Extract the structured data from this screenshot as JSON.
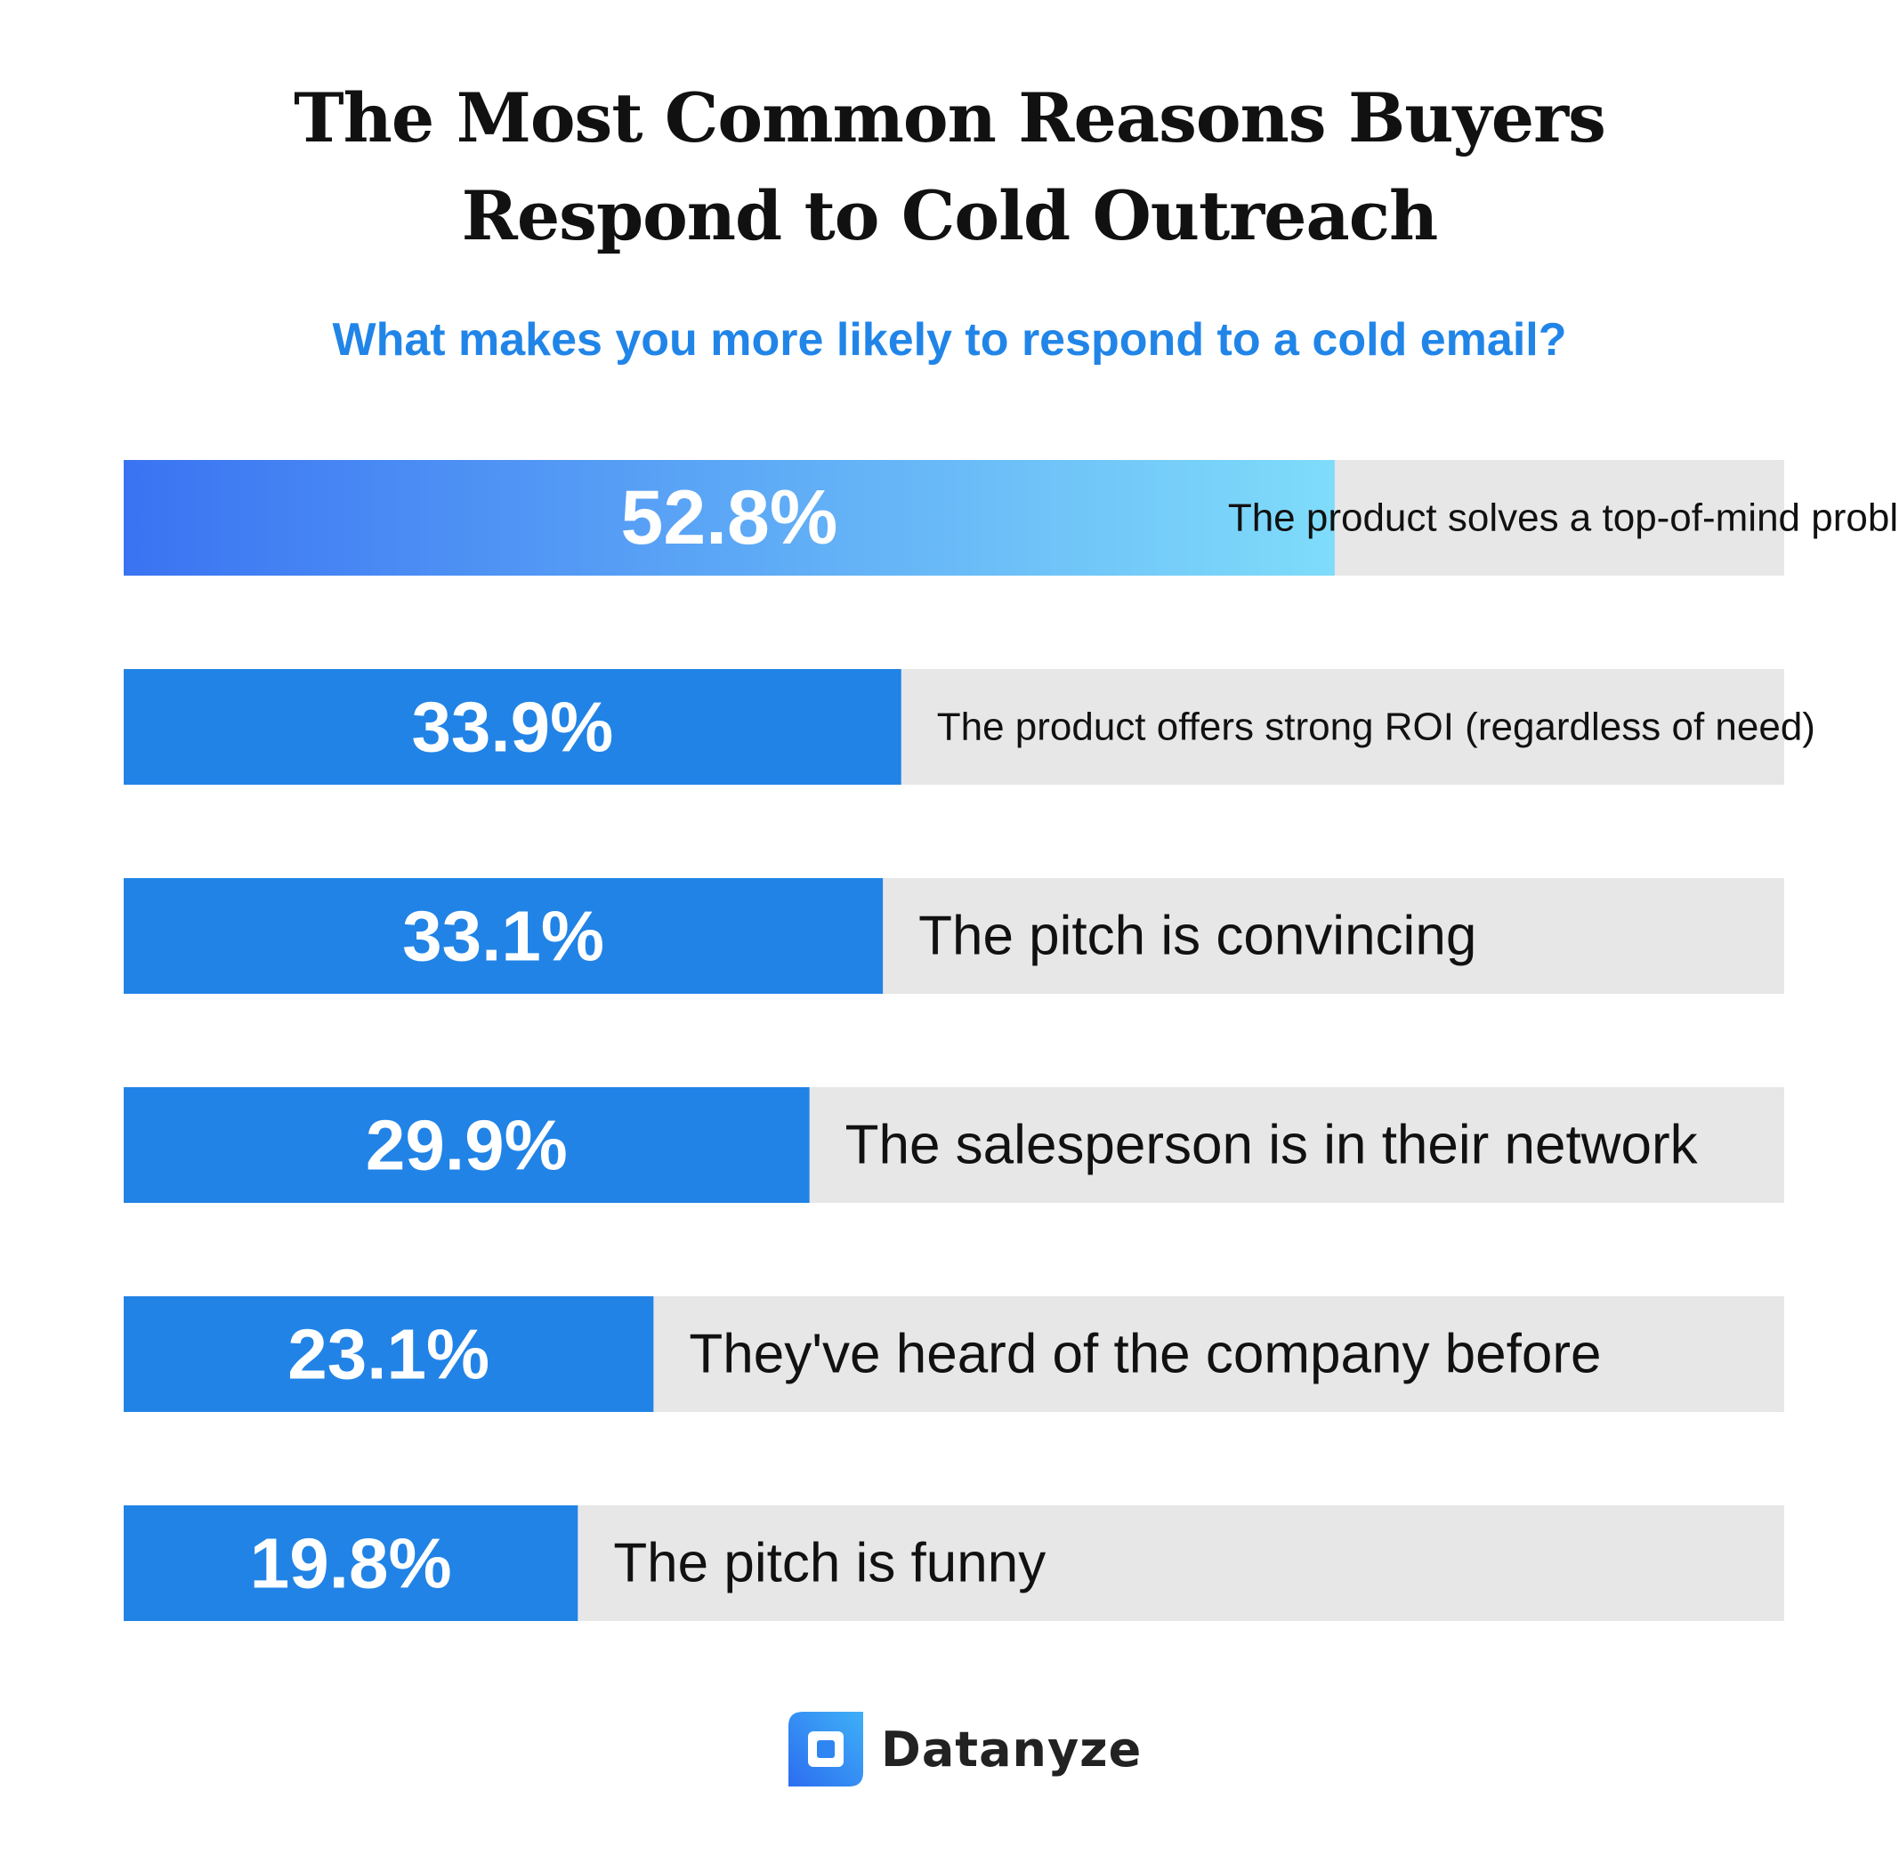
{
  "title_lines": [
    "The Most Common Reasons Buyers",
    "Respond to Cold Outreach"
  ],
  "subtitle": "What makes you more likely to respond to a cold email?",
  "brand": {
    "name": "Datanyze",
    "icon": "datanyze-logo-icon"
  },
  "colors": {
    "bar_fill": "#2183e6",
    "gradient_start": "#3a73f2",
    "gradient_end": "#7fdcfa",
    "track": "#e7e7e7",
    "value_text": "#ffffff",
    "label_text": "#111111",
    "subtitle": "#2185e8"
  },
  "chart_data": {
    "type": "bar",
    "orientation": "horizontal",
    "title": "The Most Common Reasons Buyers Respond to Cold Outreach",
    "subtitle": "What makes you more likely to respond to a cold email?",
    "value_unit": "%",
    "xlim": [
      0,
      100
    ],
    "grid": false,
    "legend": "none",
    "categories": [
      "The product solves a top-of-mind problem",
      "The product offers strong ROI (regardless of need)",
      "The pitch is convincing",
      "The salesperson is in their network",
      "They've heard of the company before",
      "The pitch is funny"
    ],
    "values": [
      52.8,
      33.9,
      33.1,
      29.9,
      23.1,
      19.8
    ],
    "value_labels": [
      "52.8%",
      "33.9%",
      "33.1%",
      "29.9%",
      "23.1%",
      "19.8%"
    ]
  }
}
